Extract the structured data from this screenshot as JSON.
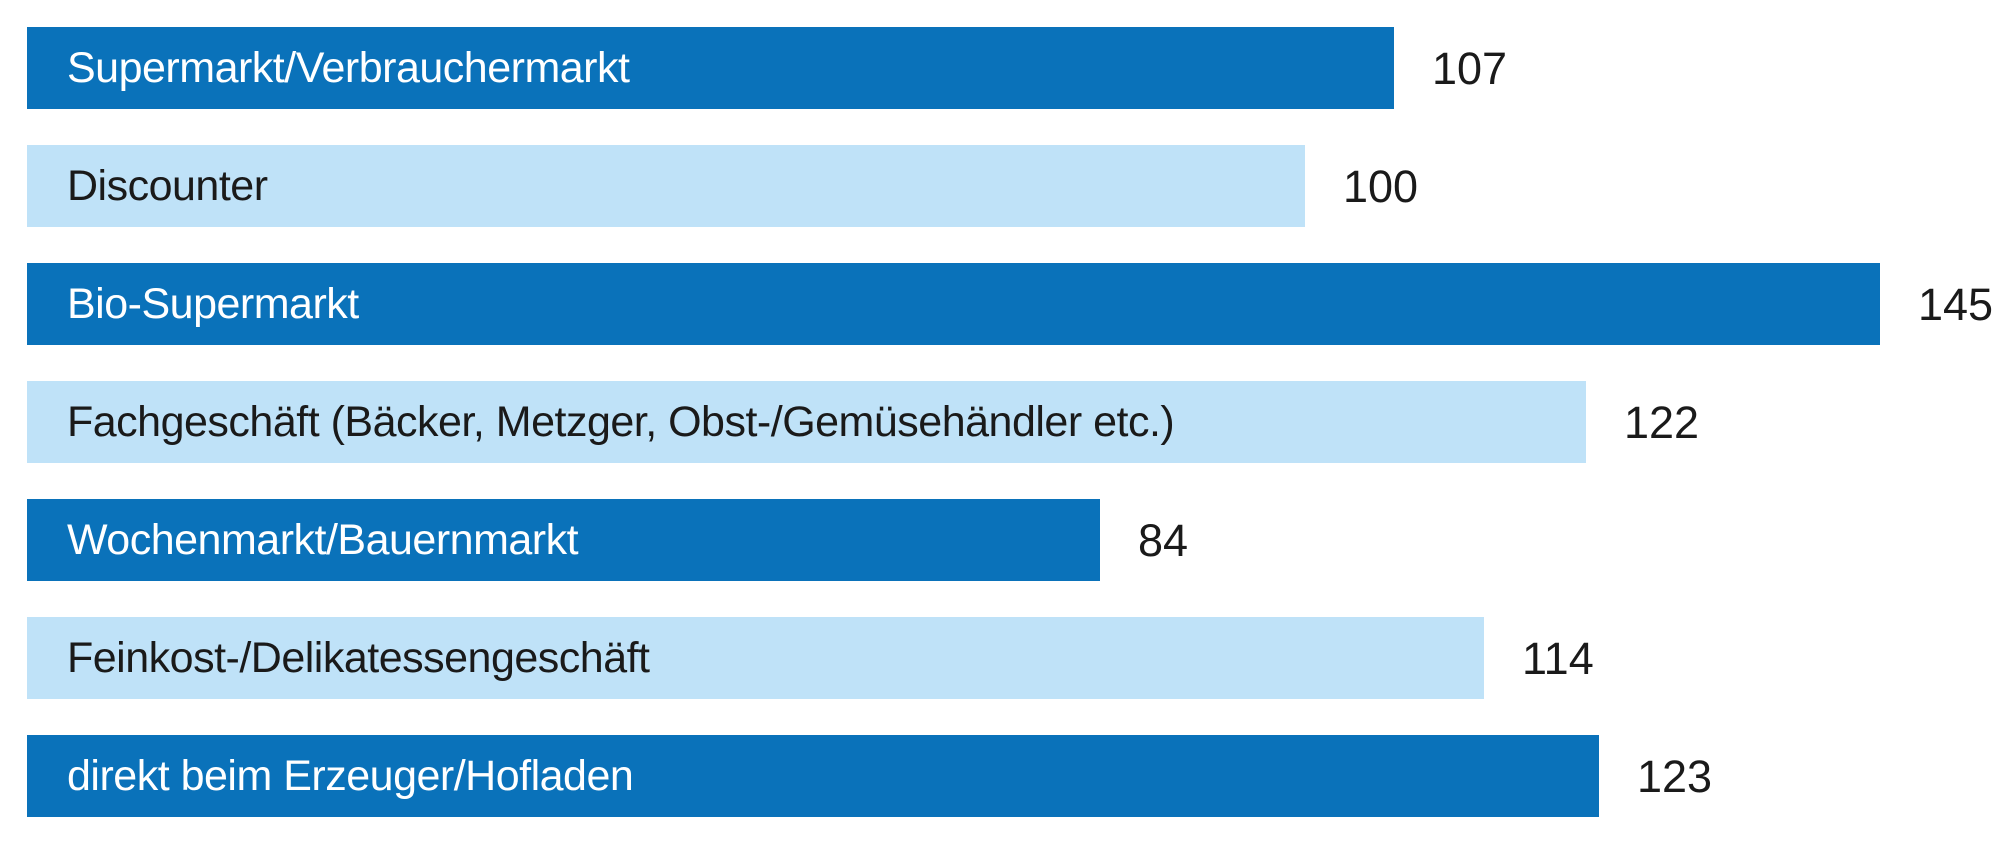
{
  "chart_data": {
    "type": "bar",
    "orientation": "horizontal",
    "title": "",
    "xlabel": "",
    "ylabel": "",
    "value_axis_range": [
      0,
      145
    ],
    "grid": false,
    "legend": false,
    "categories": [
      "Supermarkt/Verbrauchermarkt",
      "Discounter",
      "Bio-Supermarkt",
      "Fachgeschäft (Bäcker, Metzger, Obst-/Gemüsehändler etc.)",
      "Wochenmarkt/Bauernmarkt",
      "Feinkost-/Delikatessengeschäft",
      "direkt beim Erzeuger/Hofladen"
    ],
    "values": [
      107,
      100,
      145,
      122,
      84,
      114,
      123
    ],
    "bar_style_pattern": [
      "dark",
      "light",
      "dark",
      "light",
      "dark",
      "light",
      "dark"
    ],
    "colors": {
      "dark_bar": "#0a72ba",
      "light_bar": "#bfe2f8",
      "dark_bar_label_text": "#ffffff",
      "light_bar_label_text": "#1a1a1a",
      "value_label_text": "#1a1a1a",
      "background": "#ffffff"
    }
  }
}
